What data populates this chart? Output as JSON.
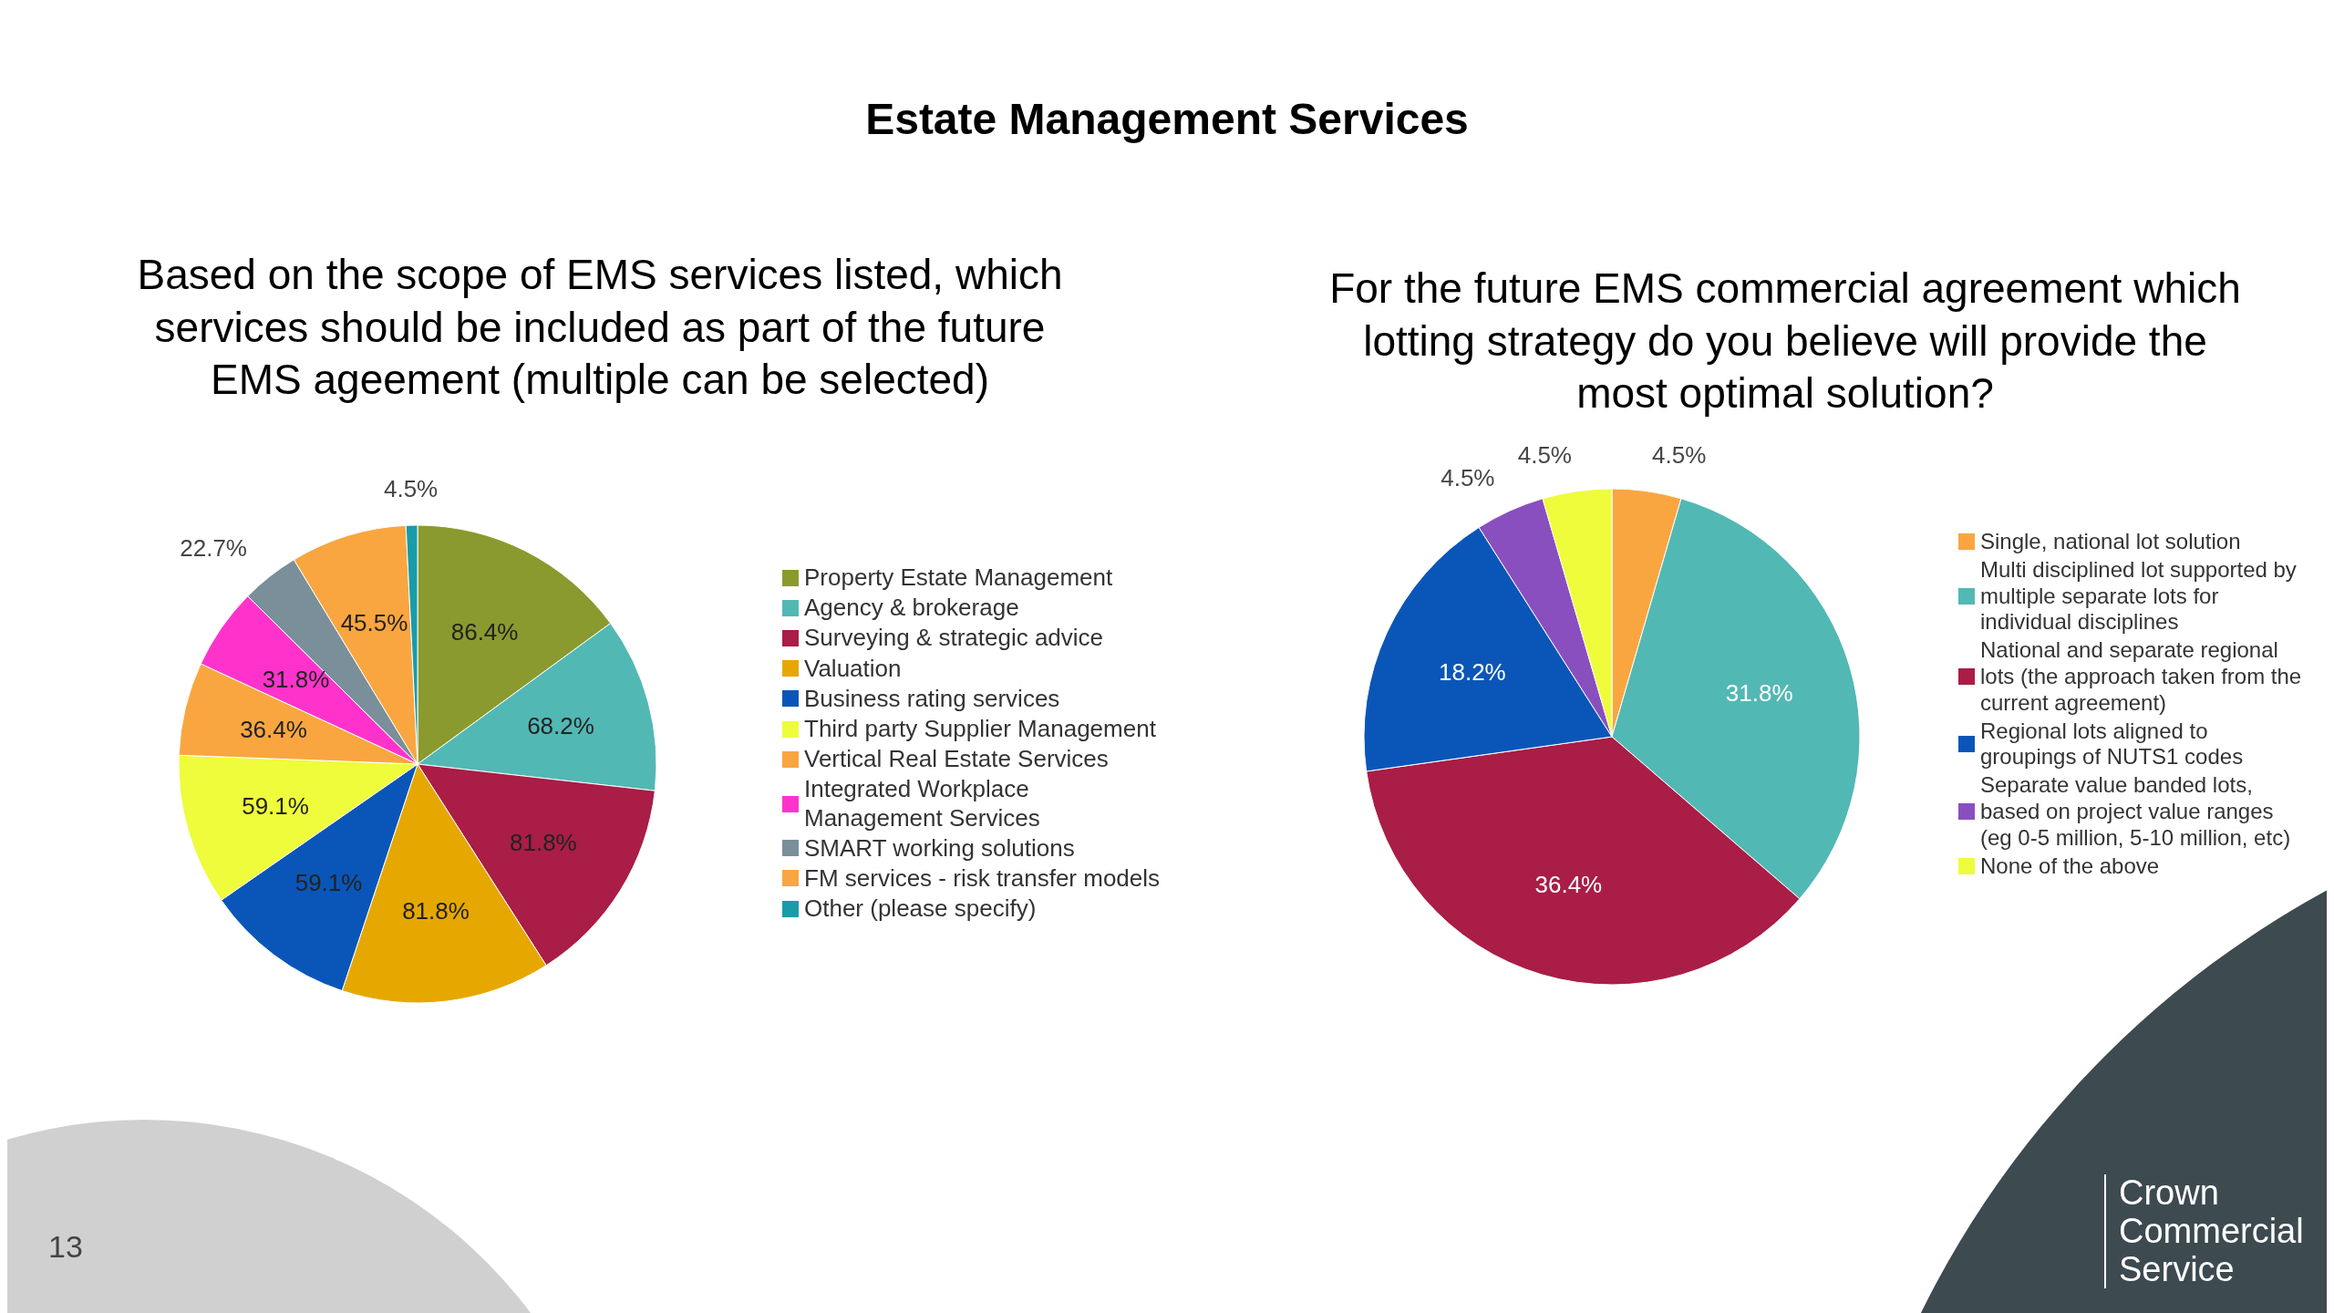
{
  "chart_data": [
    {
      "type": "pie",
      "title": "Estate Management Services",
      "subtitle": "Based on the scope of EMS services listed, which services should be included as part of the future EMS ageement (multiple can be selected)",
      "categories": [
        "Property Estate Management",
        "Agency & brokerage",
        "Surveying & strategic advice",
        "Valuation",
        "Business rating services",
        "Third party Supplier Management",
        "Vertical Real Estate Services",
        "Integrated Workplace Management Services",
        "SMART working solutions",
        "FM services - risk transfer models",
        "Other (please specify)"
      ],
      "values": [
        86.4,
        68.2,
        81.8,
        81.8,
        59.1,
        59.1,
        36.4,
        31.8,
        22.7,
        45.5,
        4.5
      ],
      "value_labels": [
        "86.4%",
        "68.2%",
        "81.8%",
        "81.8%",
        "59.1%",
        "59.1%",
        "36.4%",
        "31.8%",
        "22.7%",
        "45.5%",
        "4.5%"
      ],
      "colors": [
        "#8b9a2e",
        "#52b8b4",
        "#a91d47",
        "#e6a800",
        "#0a56b8",
        "#eefc3c",
        "#f9a640",
        "#ff33cc",
        "#7a8f99",
        "#f9a640",
        "#1a9ba8"
      ],
      "legend": "right",
      "annotations": [
        "13"
      ]
    },
    {
      "type": "pie",
      "subtitle": "For the future EMS commercial agreement which lotting strategy do you believe will provide the most optimal solution?",
      "categories": [
        "Single, national lot solution",
        "Multi disciplined lot supported by multiple separate lots for individual disciplines",
        "National and separate regional lots (the approach taken from the current agreement)",
        "Regional lots aligned to groupings of NUTS1 codes",
        "Separate value banded lots, based on project value ranges (eg 0-5 million, 5-10 million, etc)",
        "None of the above"
      ],
      "values": [
        4.5,
        31.8,
        36.4,
        18.2,
        4.5,
        4.5
      ],
      "value_labels": [
        "4.5%",
        "31.8%",
        "36.4%",
        "18.2%",
        "4.5%",
        "4.5%"
      ],
      "colors": [
        "#f9a640",
        "#52b8b4",
        "#a91d47",
        "#0a56b8",
        "#8a4fbf",
        "#eefc3c"
      ],
      "legend": "right",
      "annotations": [
        "Crown Commercial Service"
      ]
    }
  ]
}
